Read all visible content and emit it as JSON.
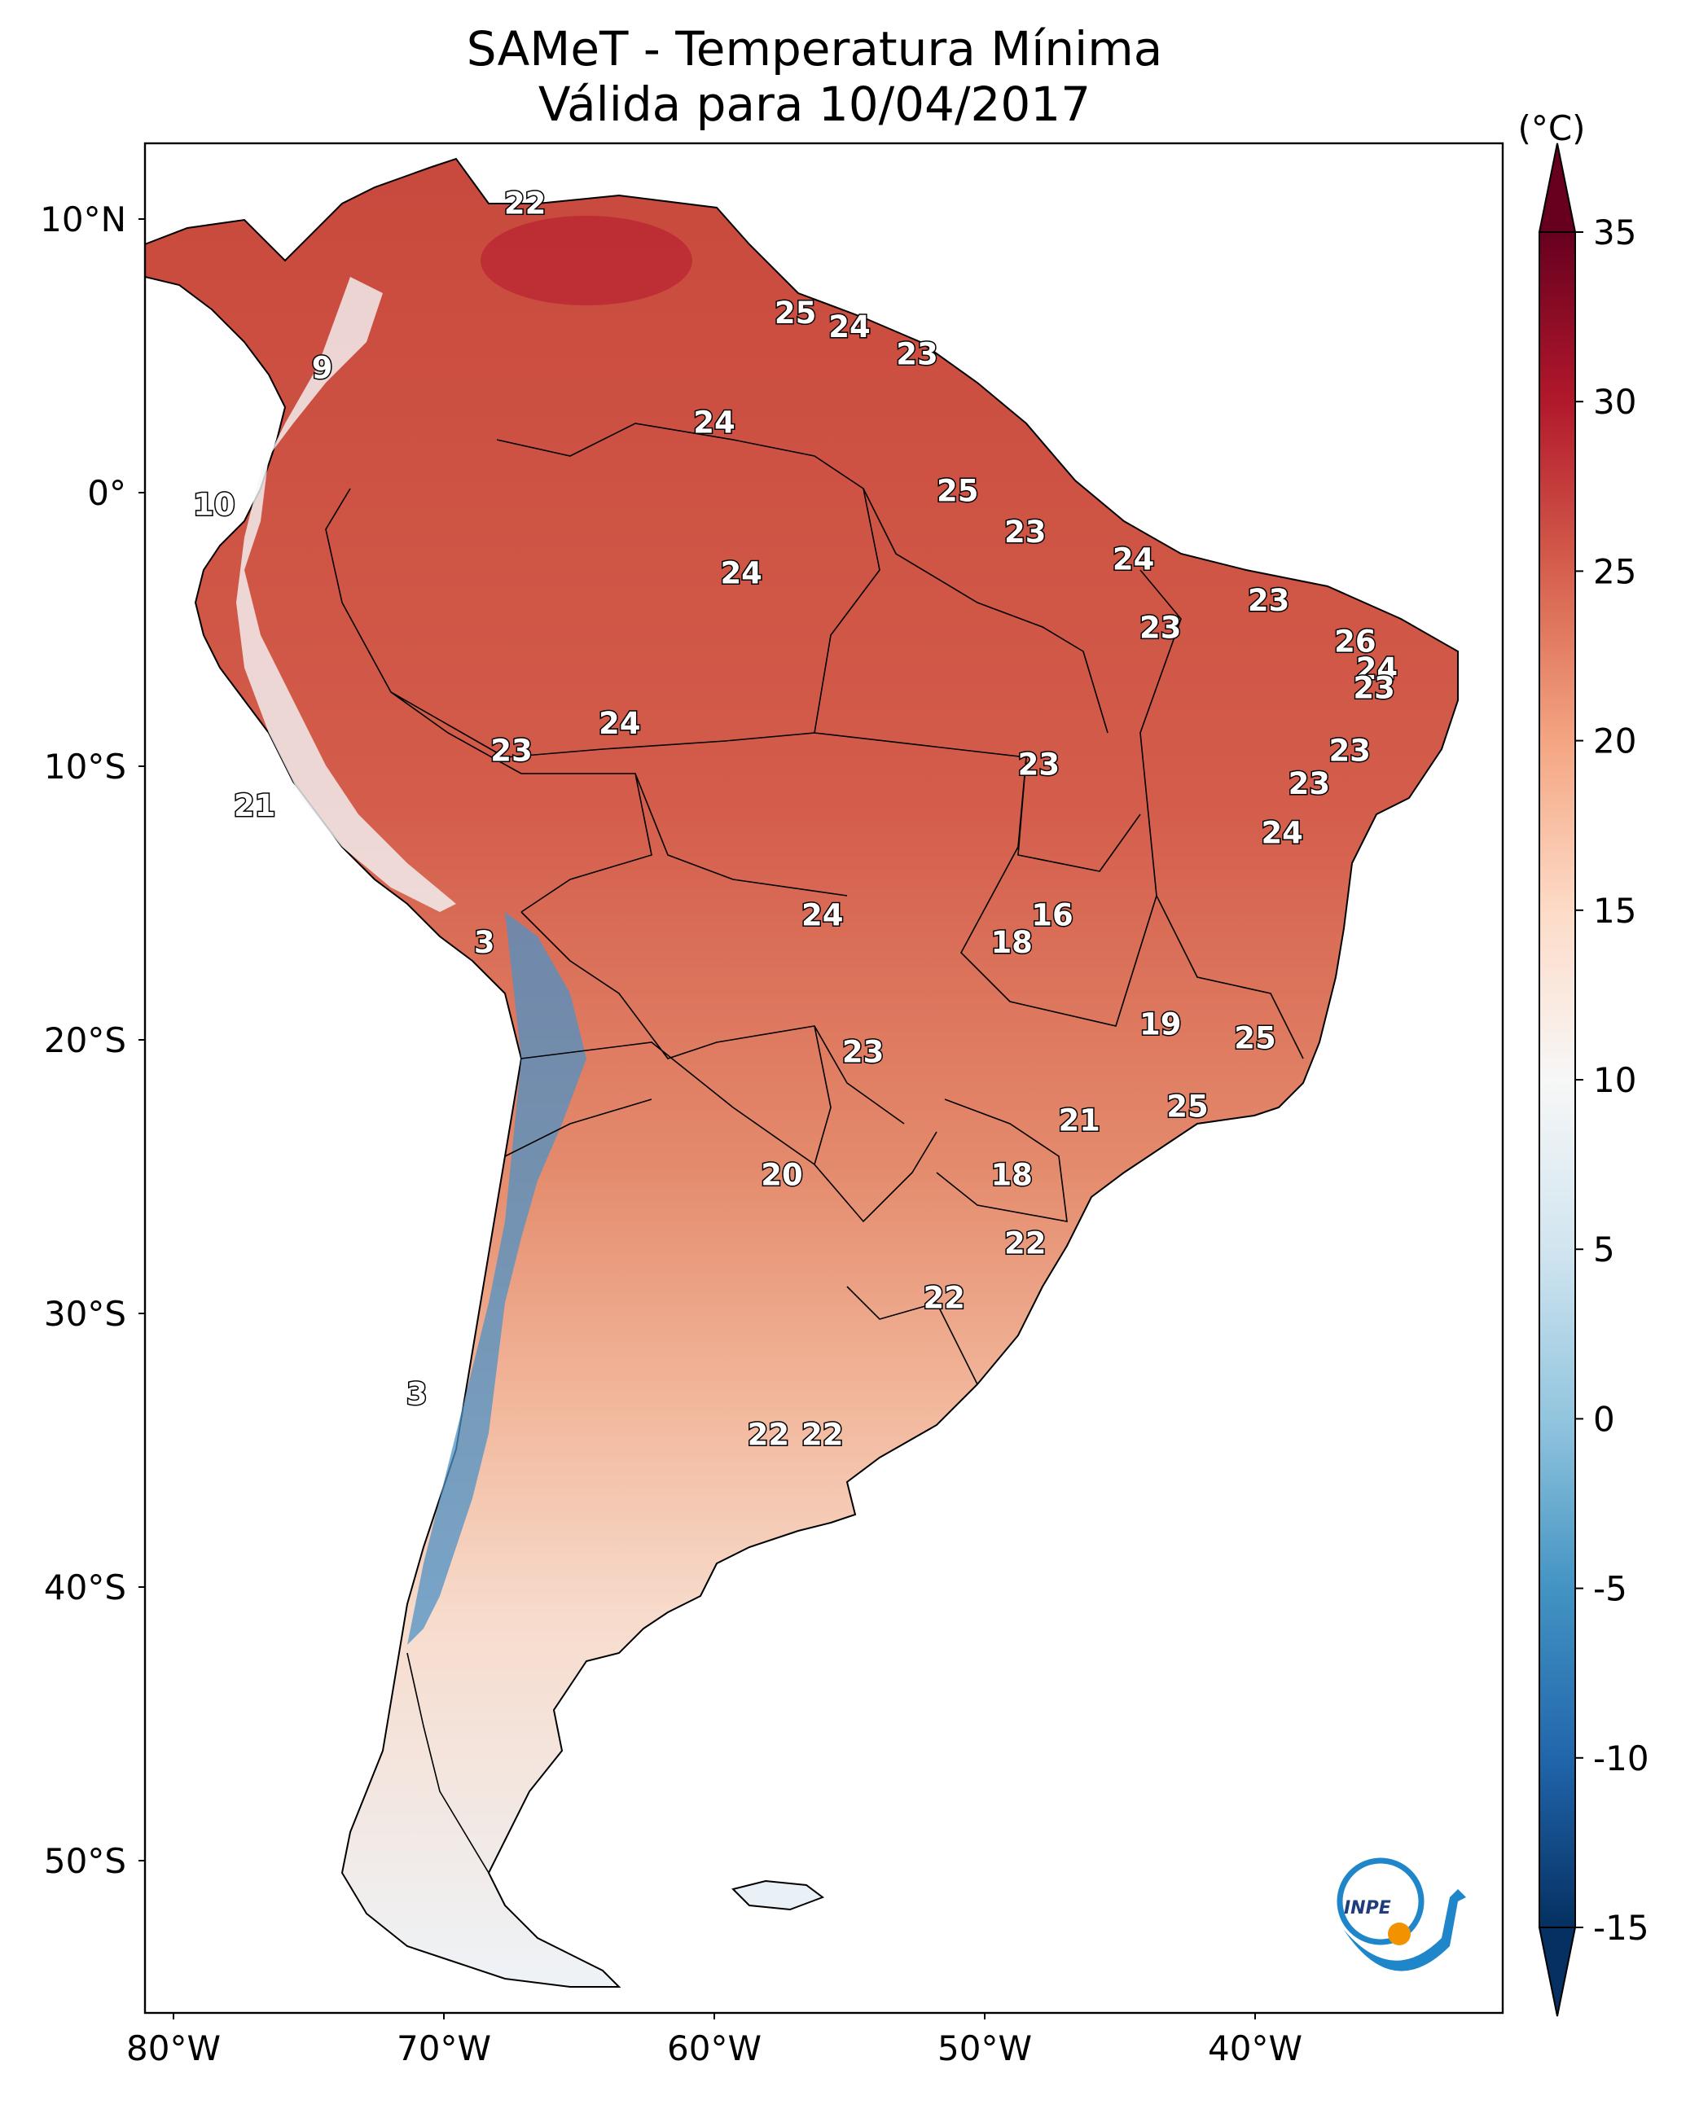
{
  "title": {
    "line1": "SAMeT - Temperatura Mínima",
    "line2": "Válida para 10/04/2017"
  },
  "axes": {
    "lat_labels": [
      "10°N",
      "0°",
      "10°S",
      "20°S",
      "30°S",
      "40°S",
      "50°S"
    ],
    "lon_labels": [
      "80°W",
      "70°W",
      "60°W",
      "50°W",
      "40°W"
    ]
  },
  "colorbar": {
    "unit": "(°C)",
    "ticks": [
      "35",
      "30",
      "25",
      "20",
      "15",
      "10",
      "5",
      "0",
      "-5",
      "-10",
      "-15"
    ],
    "range": [
      -15,
      35
    ],
    "colors": [
      "#053061",
      "#2166ac",
      "#4393c3",
      "#92c5de",
      "#d1e5f0",
      "#f7f7f7",
      "#fddbc7",
      "#f4a582",
      "#d6604d",
      "#b2182b",
      "#67001f"
    ]
  },
  "labels": [
    {
      "t": "22",
      "lon": -67,
      "lat": 10.5
    },
    {
      "t": "25",
      "lon": -57,
      "lat": 6.5
    },
    {
      "t": "24",
      "lon": -55,
      "lat": 6
    },
    {
      "t": "23",
      "lon": -52.5,
      "lat": 5
    },
    {
      "t": "9",
      "lon": -74.5,
      "lat": 4.5
    },
    {
      "t": "24",
      "lon": -60,
      "lat": 2.5
    },
    {
      "t": "10",
      "lon": -78.5,
      "lat": -0.5
    },
    {
      "t": "25",
      "lon": -51,
      "lat": 0
    },
    {
      "t": "23",
      "lon": -48.5,
      "lat": -1.5
    },
    {
      "t": "24",
      "lon": -59,
      "lat": -3
    },
    {
      "t": "24",
      "lon": -44.5,
      "lat": -2.5
    },
    {
      "t": "23",
      "lon": -39.5,
      "lat": -4
    },
    {
      "t": "23",
      "lon": -43.5,
      "lat": -5
    },
    {
      "t": "26",
      "lon": -36.3,
      "lat": -5.5
    },
    {
      "t": "24",
      "lon": -35.5,
      "lat": -6.5
    },
    {
      "t": "23",
      "lon": -35.6,
      "lat": -7.2
    },
    {
      "t": "24",
      "lon": -63.5,
      "lat": -8.5
    },
    {
      "t": "23",
      "lon": -67.5,
      "lat": -9.5
    },
    {
      "t": "23",
      "lon": -48,
      "lat": -10
    },
    {
      "t": "23",
      "lon": -36.5,
      "lat": -9.5
    },
    {
      "t": "23",
      "lon": -38,
      "lat": -10.7
    },
    {
      "t": "21",
      "lon": -77,
      "lat": -11.5
    },
    {
      "t": "24",
      "lon": -39,
      "lat": -12.5
    },
    {
      "t": "24",
      "lon": -56,
      "lat": -15.5
    },
    {
      "t": "16",
      "lon": -47.5,
      "lat": -15.5
    },
    {
      "t": "18",
      "lon": -49,
      "lat": -16.5
    },
    {
      "t": "3",
      "lon": -68.5,
      "lat": -16.5
    },
    {
      "t": "19",
      "lon": -43.5,
      "lat": -19.5
    },
    {
      "t": "25",
      "lon": -40,
      "lat": -20
    },
    {
      "t": "23",
      "lon": -54.5,
      "lat": -20.5
    },
    {
      "t": "25",
      "lon": -42.5,
      "lat": -22.5
    },
    {
      "t": "21",
      "lon": -46.5,
      "lat": -23
    },
    {
      "t": "20",
      "lon": -57.5,
      "lat": -25
    },
    {
      "t": "18",
      "lon": -49,
      "lat": -25
    },
    {
      "t": "22",
      "lon": -48.5,
      "lat": -27.5
    },
    {
      "t": "22",
      "lon": -51.5,
      "lat": -29.5
    },
    {
      "t": "3",
      "lon": -71,
      "lat": -33
    },
    {
      "t": "22",
      "lon": -58,
      "lat": -34.5
    },
    {
      "t": "22",
      "lon": -56,
      "lat": -34.5
    }
  ]
}
